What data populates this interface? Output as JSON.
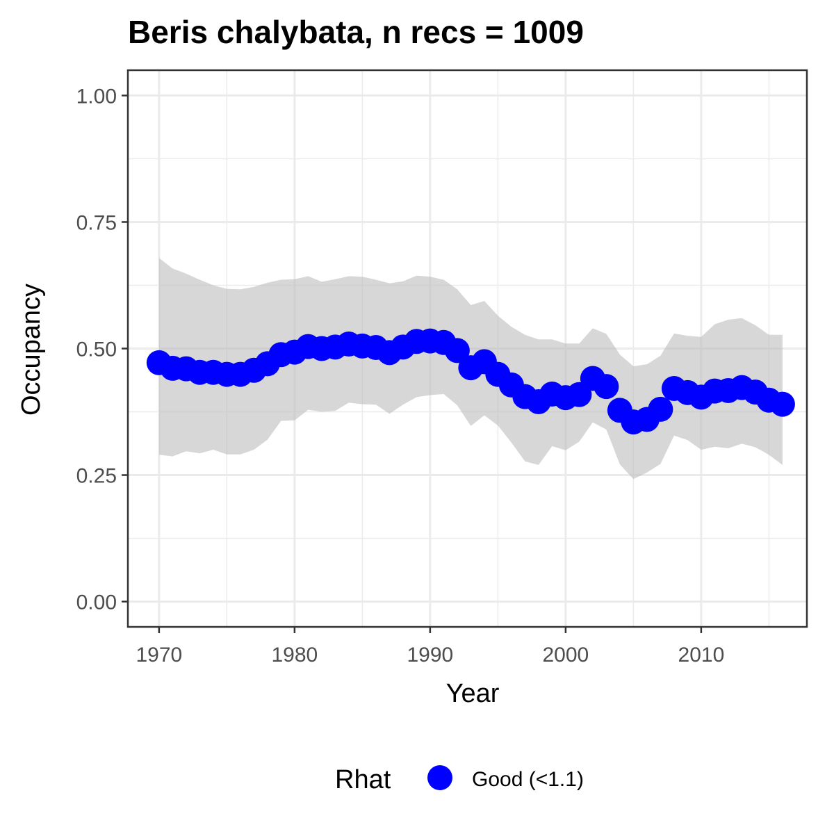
{
  "chart_data": {
    "type": "line",
    "title": "Beris chalybata, n recs = 1009",
    "xlabel": "Year",
    "ylabel": "Occupancy",
    "xlim": [
      1967.7,
      2017.8
    ],
    "ylim": [
      -0.05,
      1.05
    ],
    "x_ticks": [
      1970,
      1980,
      1990,
      2000,
      2010
    ],
    "x_tick_labels": [
      "1970",
      "1980",
      "1990",
      "2000",
      "2010"
    ],
    "y_ticks": [
      0.0,
      0.25,
      0.5,
      0.75,
      1.0
    ],
    "y_tick_labels": [
      "0.00",
      "0.25",
      "0.50",
      "0.75",
      "1.00"
    ],
    "grid": true,
    "legend_position": "bottom",
    "series": [
      {
        "x": [
          1970,
          1971,
          1972,
          1973,
          1974,
          1975,
          1976,
          1977,
          1978,
          1979,
          1980,
          1981,
          1982,
          1983,
          1984,
          1985,
          1986,
          1987,
          1988,
          1989,
          1990,
          1991,
          1992,
          1993,
          1994,
          1995,
          1996,
          1997,
          1998,
          1999,
          2000,
          2001,
          2002,
          2003,
          2004,
          2005,
          2006,
          2007,
          2008,
          2009,
          2010,
          2011,
          2012,
          2013,
          2014,
          2015,
          2016
        ],
        "values": [
          0.472,
          0.461,
          0.46,
          0.453,
          0.453,
          0.449,
          0.449,
          0.457,
          0.47,
          0.488,
          0.493,
          0.504,
          0.5,
          0.503,
          0.509,
          0.505,
          0.502,
          0.492,
          0.503,
          0.514,
          0.515,
          0.512,
          0.496,
          0.462,
          0.474,
          0.449,
          0.428,
          0.405,
          0.395,
          0.41,
          0.403,
          0.409,
          0.441,
          0.425,
          0.378,
          0.355,
          0.36,
          0.38,
          0.421,
          0.413,
          0.404,
          0.416,
          0.417,
          0.423,
          0.414,
          0.398,
          0.39
        ],
        "lower": [
          0.29,
          0.287,
          0.297,
          0.293,
          0.3,
          0.291,
          0.291,
          0.3,
          0.32,
          0.357,
          0.358,
          0.379,
          0.375,
          0.377,
          0.393,
          0.39,
          0.389,
          0.371,
          0.389,
          0.404,
          0.408,
          0.41,
          0.388,
          0.347,
          0.368,
          0.348,
          0.314,
          0.277,
          0.27,
          0.307,
          0.299,
          0.316,
          0.354,
          0.34,
          0.271,
          0.242,
          0.255,
          0.272,
          0.328,
          0.319,
          0.3,
          0.306,
          0.303,
          0.312,
          0.305,
          0.29,
          0.27
        ],
        "upper": [
          0.679,
          0.658,
          0.648,
          0.636,
          0.625,
          0.618,
          0.617,
          0.622,
          0.63,
          0.636,
          0.637,
          0.643,
          0.632,
          0.637,
          0.643,
          0.642,
          0.636,
          0.629,
          0.633,
          0.644,
          0.642,
          0.636,
          0.617,
          0.586,
          0.594,
          0.565,
          0.543,
          0.527,
          0.518,
          0.518,
          0.51,
          0.51,
          0.54,
          0.529,
          0.488,
          0.465,
          0.469,
          0.486,
          0.53,
          0.525,
          0.523,
          0.548,
          0.557,
          0.56,
          0.546,
          0.527,
          0.527
        ]
      }
    ],
    "colors": {
      "points": "#0000ff",
      "ribbon": "#bdbdbd",
      "grid": "#ebebeb",
      "panel_border": "#333333"
    },
    "legend": {
      "title": "Rhat",
      "items": [
        {
          "label": "Good (<1.1)",
          "color": "#0000ff"
        }
      ]
    }
  }
}
